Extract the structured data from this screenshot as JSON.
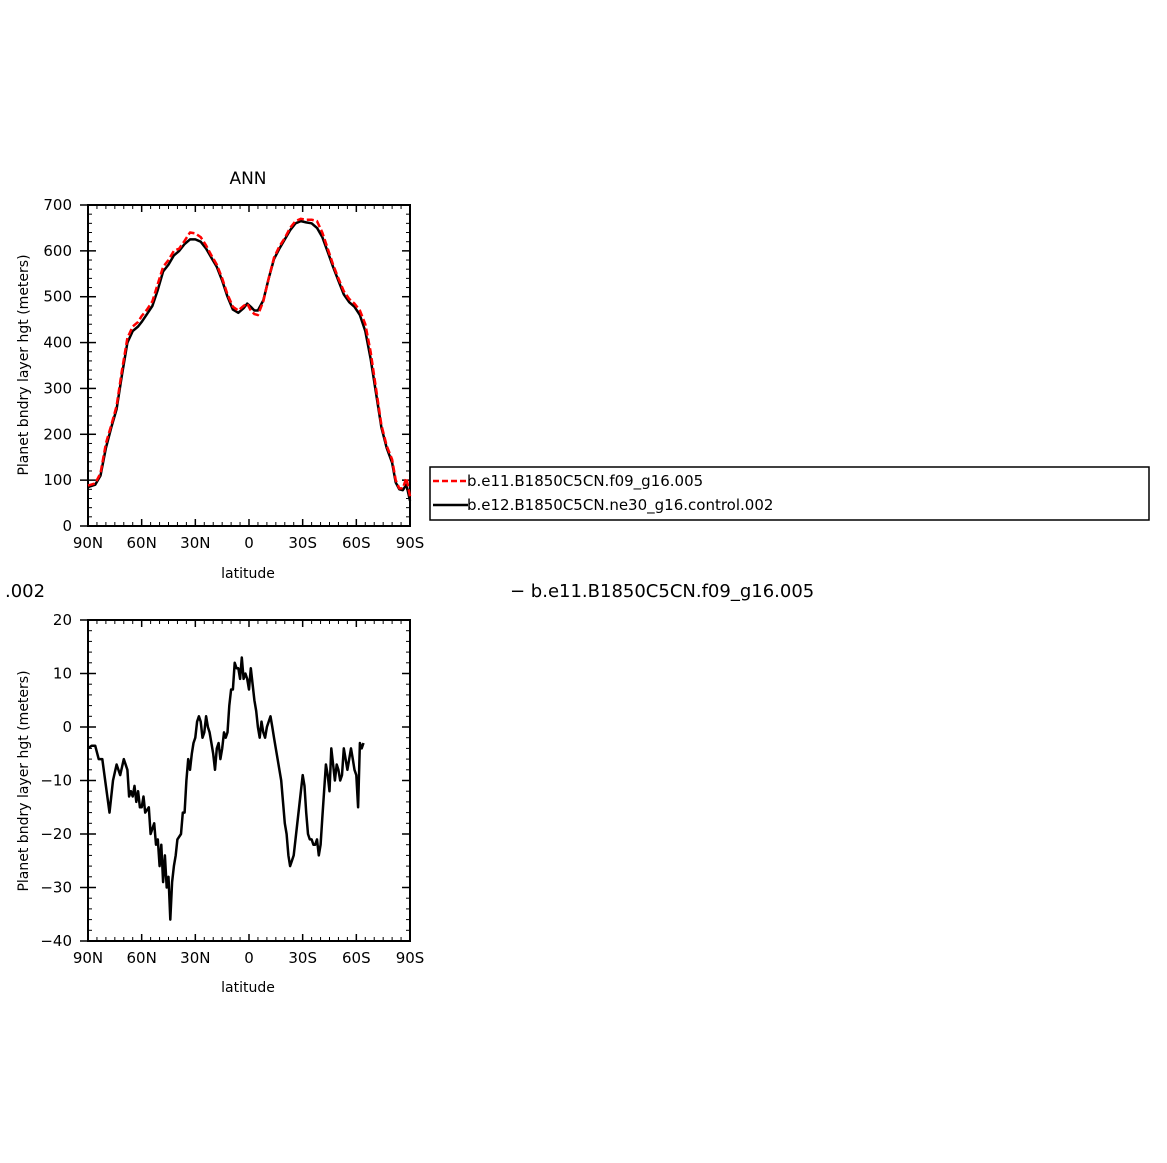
{
  "chart_data": [
    {
      "type": "line",
      "title": "ANN",
      "xlabel": "latitude",
      "ylabel": "Planet bndry layer hgt (meters)",
      "xlim": [
        90,
        -90
      ],
      "ylim": [
        0,
        700
      ],
      "x_ticks": [
        {
          "value": 90,
          "label": "90N"
        },
        {
          "value": 60,
          "label": "60N"
        },
        {
          "value": 30,
          "label": "30N"
        },
        {
          "value": 0,
          "label": "0"
        },
        {
          "value": -30,
          "label": "30S"
        },
        {
          "value": -60,
          "label": "60S"
        },
        {
          "value": -90,
          "label": "90S"
        }
      ],
      "y_ticks": [
        0,
        100,
        200,
        300,
        400,
        500,
        600,
        700
      ],
      "grid": false,
      "legend_position": "right",
      "series": [
        {
          "name": "b.e11.B1850C5CN.f09_g16.005",
          "color": "#ff0000",
          "dash": "dashed",
          "points": [
            [
              90,
              88
            ],
            [
              86,
              93
            ],
            [
              83,
              115
            ],
            [
              80,
              180
            ],
            [
              77,
              220
            ],
            [
              74,
              262
            ],
            [
              71,
              340
            ],
            [
              68,
              410
            ],
            [
              65,
              435
            ],
            [
              62,
              445
            ],
            [
              60,
              458
            ],
            [
              57,
              472
            ],
            [
              54,
              490
            ],
            [
              51,
              528
            ],
            [
              48,
              565
            ],
            [
              45,
              580
            ],
            [
              42,
              600
            ],
            [
              39,
              605
            ],
            [
              36,
              622
            ],
            [
              33,
              640
            ],
            [
              30,
              638
            ],
            [
              27,
              630
            ],
            [
              24,
              612
            ],
            [
              21,
              590
            ],
            [
              18,
              570
            ],
            [
              15,
              540
            ],
            [
              12,
              505
            ],
            [
              9,
              478
            ],
            [
              6,
              470
            ],
            [
              3,
              480
            ],
            [
              1,
              485
            ],
            [
              -1,
              470
            ],
            [
              -3,
              462
            ],
            [
              -5,
              460
            ],
            [
              -8,
              490
            ],
            [
              -11,
              540
            ],
            [
              -14,
              585
            ],
            [
              -17,
              610
            ],
            [
              -20,
              628
            ],
            [
              -23,
              650
            ],
            [
              -26,
              665
            ],
            [
              -29,
              670
            ],
            [
              -32,
              668
            ],
            [
              -35,
              668
            ],
            [
              -38,
              665
            ],
            [
              -41,
              640
            ],
            [
              -44,
              605
            ],
            [
              -47,
              570
            ],
            [
              -50,
              540
            ],
            [
              -53,
              512
            ],
            [
              -56,
              495
            ],
            [
              -59,
              485
            ],
            [
              -62,
              470
            ],
            [
              -65,
              440
            ],
            [
              -68,
              380
            ],
            [
              -71,
              300
            ],
            [
              -74,
              220
            ],
            [
              -77,
              175
            ],
            [
              -80,
              145
            ],
            [
              -82,
              100
            ],
            [
              -84,
              82
            ],
            [
              -86,
              82
            ],
            [
              -88,
              105
            ],
            [
              -90,
              65
            ]
          ]
        },
        {
          "name": "b.e12.B1850C5CN.ne30_g16.control.002",
          "color": "#000000",
          "dash": "solid",
          "points": [
            [
              90,
              85
            ],
            [
              86,
              90
            ],
            [
              83,
              110
            ],
            [
              80,
              170
            ],
            [
              77,
              215
            ],
            [
              74,
              255
            ],
            [
              71,
              330
            ],
            [
              68,
              400
            ],
            [
              65,
              425
            ],
            [
              62,
              435
            ],
            [
              60,
              445
            ],
            [
              57,
              462
            ],
            [
              54,
              480
            ],
            [
              51,
              515
            ],
            [
              48,
              555
            ],
            [
              45,
              570
            ],
            [
              42,
              590
            ],
            [
              39,
              600
            ],
            [
              36,
              615
            ],
            [
              33,
              625
            ],
            [
              30,
              625
            ],
            [
              27,
              620
            ],
            [
              24,
              605
            ],
            [
              21,
              585
            ],
            [
              18,
              565
            ],
            [
              15,
              535
            ],
            [
              12,
              500
            ],
            [
              9,
              472
            ],
            [
              6,
              465
            ],
            [
              3,
              475
            ],
            [
              1,
              485
            ],
            [
              -1,
              478
            ],
            [
              -3,
              470
            ],
            [
              -5,
              470
            ],
            [
              -8,
              492
            ],
            [
              -11,
              540
            ],
            [
              -14,
              582
            ],
            [
              -17,
              605
            ],
            [
              -20,
              625
            ],
            [
              -23,
              645
            ],
            [
              -26,
              660
            ],
            [
              -29,
              665
            ],
            [
              -32,
              662
            ],
            [
              -35,
              660
            ],
            [
              -38,
              650
            ],
            [
              -41,
              630
            ],
            [
              -44,
              598
            ],
            [
              -47,
              565
            ],
            [
              -50,
              535
            ],
            [
              -53,
              505
            ],
            [
              -56,
              488
            ],
            [
              -59,
              478
            ],
            [
              -62,
              460
            ],
            [
              -65,
              425
            ],
            [
              -68,
              365
            ],
            [
              -71,
              290
            ],
            [
              -74,
              215
            ],
            [
              -77,
              170
            ],
            [
              -80,
              138
            ],
            [
              -82,
              95
            ],
            [
              -84,
              80
            ],
            [
              -86,
              78
            ],
            [
              -88,
              90
            ],
            [
              -90,
              55
            ]
          ]
        }
      ]
    },
    {
      "type": "line",
      "title": ".002",
      "subtitle": "− b.e11.B1850C5CN.f09_g16.005",
      "xlabel": "latitude",
      "ylabel": "Planet bndry layer hgt (meters)",
      "xlim": [
        90,
        -90
      ],
      "ylim": [
        -40,
        20
      ],
      "x_ticks": [
        {
          "value": 90,
          "label": "90N"
        },
        {
          "value": 60,
          "label": "60N"
        },
        {
          "value": 30,
          "label": "30N"
        },
        {
          "value": 0,
          "label": "0"
        },
        {
          "value": -30,
          "label": "30S"
        },
        {
          "value": -60,
          "label": "60S"
        },
        {
          "value": -90,
          "label": "90S"
        }
      ],
      "y_ticks": [
        -40,
        -30,
        -20,
        -10,
        0,
        10,
        20
      ],
      "grid": false,
      "series": [
        {
          "color": "#000000",
          "dash": "solid",
          "points": [
            [
              90,
              -4
            ],
            [
              88,
              -3.5
            ],
            [
              86,
              -3.5
            ],
            [
              84,
              -6
            ],
            [
              82,
              -6
            ],
            [
              80,
              -11
            ],
            [
              78,
              -16
            ],
            [
              76,
              -10
            ],
            [
              74,
              -7
            ],
            [
              72,
              -9
            ],
            [
              70,
              -6
            ],
            [
              68,
              -8
            ],
            [
              67,
              -13
            ],
            [
              66,
              -12
            ],
            [
              65,
              -13
            ],
            [
              64,
              -11
            ],
            [
              63,
              -14
            ],
            [
              62,
              -12
            ],
            [
              61,
              -15
            ],
            [
              60,
              -15
            ],
            [
              59,
              -13
            ],
            [
              58,
              -16
            ],
            [
              56,
              -15
            ],
            [
              55,
              -20
            ],
            [
              53,
              -18
            ],
            [
              52,
              -22
            ],
            [
              51,
              -21
            ],
            [
              50,
              -26
            ],
            [
              49,
              -22
            ],
            [
              48,
              -29
            ],
            [
              47,
              -24
            ],
            [
              46,
              -30
            ],
            [
              45,
              -28
            ],
            [
              44,
              -36
            ],
            [
              43,
              -29
            ],
            [
              42,
              -26
            ],
            [
              41,
              -24
            ],
            [
              40,
              -21
            ],
            [
              38,
              -20
            ],
            [
              37,
              -16
            ],
            [
              36,
              -16
            ],
            [
              35,
              -10
            ],
            [
              34,
              -6
            ],
            [
              33,
              -8
            ],
            [
              32,
              -5
            ],
            [
              31,
              -3
            ],
            [
              30,
              -2
            ],
            [
              29,
              1
            ],
            [
              28,
              2
            ],
            [
              27,
              1
            ],
            [
              26,
              -2
            ],
            [
              25,
              -1
            ],
            [
              24,
              2
            ],
            [
              23,
              0
            ],
            [
              22,
              -1
            ],
            [
              21,
              -3
            ],
            [
              20,
              -5
            ],
            [
              19,
              -8
            ],
            [
              18,
              -4
            ],
            [
              17,
              -3
            ],
            [
              16,
              -6
            ],
            [
              15,
              -4
            ],
            [
              14,
              -1
            ],
            [
              13,
              -2
            ],
            [
              12,
              -1
            ],
            [
              11,
              4
            ],
            [
              10,
              7
            ],
            [
              9,
              7
            ],
            [
              8,
              12
            ],
            [
              7,
              11
            ],
            [
              6,
              11
            ],
            [
              5,
              9
            ],
            [
              4,
              13
            ],
            [
              3,
              9
            ],
            [
              2,
              10
            ],
            [
              1,
              9
            ],
            [
              0,
              7
            ],
            [
              -1,
              11
            ],
            [
              -2,
              8
            ],
            [
              -3,
              5
            ],
            [
              -4,
              3
            ],
            [
              -5,
              0
            ],
            [
              -6,
              -2
            ],
            [
              -7,
              1
            ],
            [
              -8,
              -1
            ],
            [
              -9,
              -2
            ],
            [
              -10,
              0
            ],
            [
              -11,
              1
            ],
            [
              -12,
              2
            ],
            [
              -13,
              0
            ],
            [
              -14,
              -2
            ],
            [
              -15,
              -4
            ],
            [
              -16,
              -6
            ],
            [
              -17,
              -8
            ],
            [
              -18,
              -10
            ],
            [
              -19,
              -14
            ],
            [
              -20,
              -18
            ],
            [
              -21,
              -20
            ],
            [
              -22,
              -24
            ],
            [
              -23,
              -26
            ],
            [
              -24,
              -25
            ],
            [
              -25,
              -24
            ],
            [
              -26,
              -21
            ],
            [
              -27,
              -18
            ],
            [
              -28,
              -15
            ],
            [
              -29,
              -12
            ],
            [
              -30,
              -9
            ],
            [
              -31,
              -11
            ],
            [
              -32,
              -16
            ],
            [
              -33,
              -20
            ],
            [
              -34,
              -21
            ],
            [
              -35,
              -21
            ],
            [
              -36,
              -22
            ],
            [
              -37,
              -22
            ],
            [
              -38,
              -21
            ],
            [
              -39,
              -24
            ],
            [
              -40,
              -22
            ],
            [
              -41,
              -17
            ],
            [
              -42,
              -12
            ],
            [
              -43,
              -7
            ],
            [
              -44,
              -9
            ],
            [
              -45,
              -12
            ],
            [
              -46,
              -4
            ],
            [
              -47,
              -7
            ],
            [
              -48,
              -10
            ],
            [
              -49,
              -7
            ],
            [
              -50,
              -8
            ],
            [
              -51,
              -10
            ],
            [
              -52,
              -9
            ],
            [
              -53,
              -4
            ],
            [
              -54,
              -6
            ],
            [
              -55,
              -8
            ],
            [
              -56,
              -6
            ],
            [
              -57,
              -4
            ],
            [
              -58,
              -6
            ],
            [
              -59,
              -8
            ],
            [
              -60,
              -9
            ],
            [
              -61,
              -15
            ],
            [
              -62,
              -3
            ],
            [
              -63,
              -4
            ],
            [
              -64,
              -3
            ]
          ]
        }
      ]
    }
  ],
  "chart_data_orientation_note": ""
}
